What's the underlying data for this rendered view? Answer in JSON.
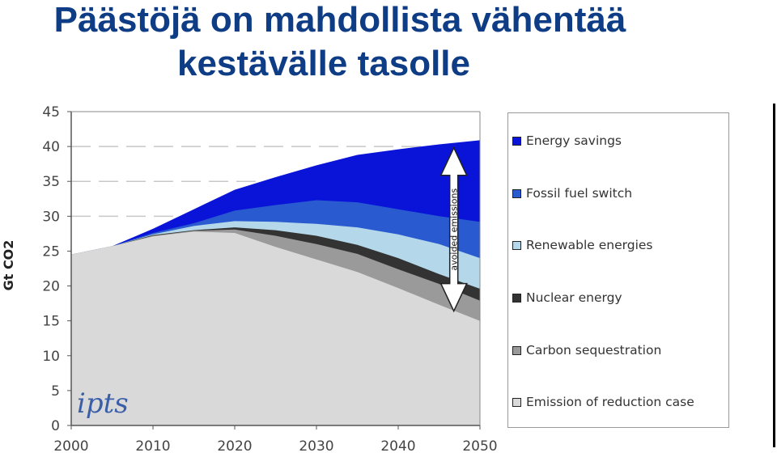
{
  "title_line1": "Päästöjä on mahdollista vähentää",
  "title_line2": "kestävälle tasolle",
  "colors": {
    "title": "#0e3d86",
    "energy_savings": "#0a14d8",
    "fossil_fuel_switch": "#2a5ad0",
    "renewable_energies": "#b4d8ea",
    "nuclear_energy": "#333333",
    "carbon_sequestration": "#9a9a9a",
    "reduction_case": "#d9d9d9",
    "arrow": "#ffffff"
  },
  "logo_text": "ipts",
  "chart_data": {
    "type": "area",
    "ylabel": "Gt CO2",
    "xlabel": "",
    "x_ticks": [
      "2000",
      "2010",
      "2020",
      "2030",
      "2040",
      "2050"
    ],
    "y_ticks": [
      "0",
      "5",
      "10",
      "15",
      "20",
      "25",
      "30",
      "35",
      "40",
      "45"
    ],
    "xlim": [
      2000,
      2050
    ],
    "ylim": [
      0,
      45
    ],
    "grid": "dashed horizontal lines at 30, 35, 40",
    "legend_position": "right",
    "annotation": "avoided emissions",
    "x": [
      2000,
      2005,
      2010,
      2015,
      2020,
      2025,
      2030,
      2035,
      2040,
      2045,
      2050
    ],
    "baseline_upper_bounds": {
      "reduction_case": [
        24.5,
        25.7,
        27.1,
        27.8,
        27.6,
        25.6,
        23.8,
        22.0,
        19.7,
        17.3,
        15.0
      ],
      "carbon_sequestration": [
        24.5,
        25.7,
        27.2,
        27.9,
        28.1,
        27.2,
        26.0,
        24.6,
        22.4,
        20.3,
        17.9
      ],
      "nuclear_energy": [
        24.5,
        25.7,
        27.3,
        28.0,
        28.4,
        28.0,
        27.2,
        25.9,
        24.0,
        21.7,
        19.6
      ],
      "renewable_energies": [
        24.5,
        25.7,
        27.4,
        28.6,
        29.3,
        29.2,
        28.9,
        28.4,
        27.4,
        26.0,
        24.0
      ],
      "fossil_fuel_switch": [
        24.5,
        25.7,
        27.6,
        29.0,
        30.8,
        31.6,
        32.3,
        32.0,
        31.0,
        30.0,
        29.2
      ],
      "energy_savings": [
        24.5,
        25.7,
        28.2,
        31.0,
        33.8,
        35.6,
        37.3,
        38.8,
        39.6,
        40.3,
        40.9
      ]
    },
    "series": [
      {
        "name": "Energy savings",
        "color_key": "energy_savings"
      },
      {
        "name": "Fossil fuel switch",
        "color_key": "fossil_fuel_switch"
      },
      {
        "name": "Renewable energies",
        "color_key": "renewable_energies"
      },
      {
        "name": "Nuclear energy",
        "color_key": "nuclear_energy"
      },
      {
        "name": "Carbon sequestration",
        "color_key": "carbon_sequestration"
      },
      {
        "name": "Emission of reduction case",
        "color_key": "reduction_case"
      }
    ]
  }
}
